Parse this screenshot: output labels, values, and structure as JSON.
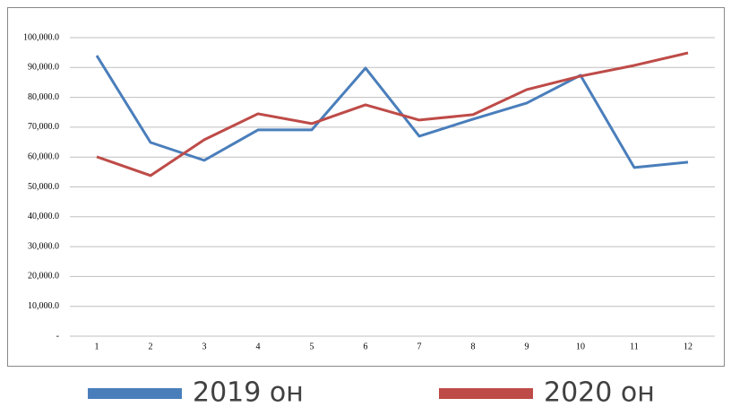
{
  "chart_data": {
    "type": "line",
    "categories": [
      "1",
      "2",
      "3",
      "4",
      "5",
      "6",
      "7",
      "8",
      "9",
      "10",
      "11",
      "12"
    ],
    "series": [
      {
        "name": "2019 он",
        "color": "#4a7ebb",
        "values": [
          94000,
          64900,
          58900,
          69100,
          69100,
          89800,
          67000,
          72700,
          78100,
          87400,
          56500,
          58300
        ]
      },
      {
        "name": "2020 он",
        "color": "#be4b48",
        "values": [
          60100,
          53800,
          65800,
          74500,
          71200,
          77500,
          72400,
          74200,
          82600,
          87100,
          90700,
          94900
        ]
      }
    ],
    "ylim": [
      0,
      100000
    ],
    "yticks": [
      {
        "value": 0,
        "label": "-"
      },
      {
        "value": 10000,
        "label": "10,000.0"
      },
      {
        "value": 20000,
        "label": "20,000.0"
      },
      {
        "value": 30000,
        "label": "30,000.0"
      },
      {
        "value": 40000,
        "label": "40,000.0"
      },
      {
        "value": 50000,
        "label": "50,000.0"
      },
      {
        "value": 60000,
        "label": "60,000.0"
      },
      {
        "value": 70000,
        "label": "70,000.0"
      },
      {
        "value": 80000,
        "label": "80,000.0"
      },
      {
        "value": 90000,
        "label": "90,000.0"
      },
      {
        "value": 100000,
        "label": "100,000.0"
      }
    ],
    "grid": true,
    "legend": "bottom"
  }
}
